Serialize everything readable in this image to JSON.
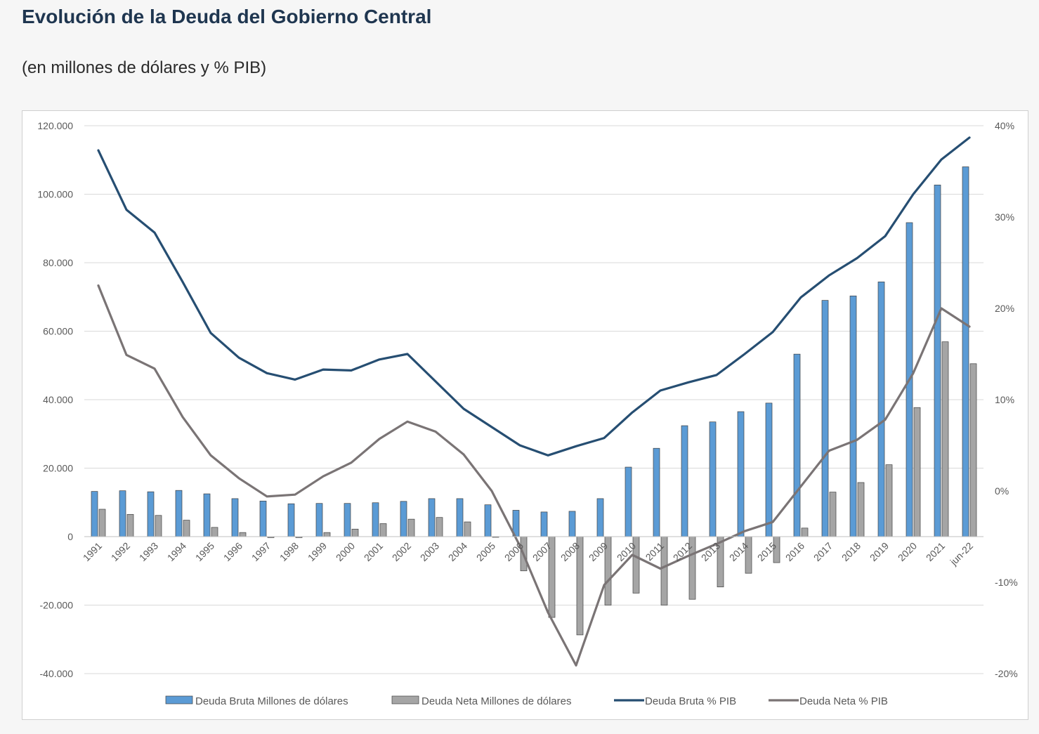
{
  "header": {
    "title": "Evolución de la Deuda del Gobierno Central",
    "subtitle": "(en millones de dólares y % PIB)"
  },
  "colors": {
    "bruta_bar": "#5b9bd5",
    "neta_bar": "#a5a5a5",
    "bruta_line": "#264e72",
    "neta_line": "#7a7475"
  },
  "chart_data": {
    "type": "bar",
    "title": "Evolución de la Deuda del Gobierno Central",
    "categories": [
      "1991",
      "1992",
      "1993",
      "1994",
      "1995",
      "1996",
      "1997",
      "1998",
      "1999",
      "2000",
      "2001",
      "2002",
      "2003",
      "2004",
      "2005",
      "2006",
      "2007",
      "2008",
      "2009",
      "2010",
      "2011",
      "2012",
      "2013",
      "2014",
      "2015",
      "2016",
      "2017",
      "2018",
      "2019",
      "2020",
      "2021",
      "jun-22"
    ],
    "y_left": {
      "min": -40000,
      "max": 120000,
      "ticks": [
        -40000,
        -20000,
        0,
        20000,
        40000,
        60000,
        80000,
        100000,
        120000
      ],
      "tick_labels": [
        "-40.000",
        "-20.000",
        "0",
        "20.000",
        "40.000",
        "60.000",
        "80.000",
        "100.000",
        "120.000"
      ]
    },
    "y_right": {
      "min": -20,
      "max": 40,
      "ticks": [
        -20,
        -10,
        0,
        10,
        20,
        30,
        40
      ],
      "tick_labels": [
        "-20%",
        "-10%",
        "0%",
        "10%",
        "20%",
        "30%",
        "40%"
      ]
    },
    "series": [
      {
        "name": "Deuda Bruta Millones de dólares",
        "type": "bar",
        "axis": "left",
        "values": [
          13200,
          13400,
          13100,
          13500,
          12500,
          11100,
          10400,
          9600,
          9700,
          9700,
          9900,
          10300,
          11100,
          11100,
          9300,
          7700,
          7200,
          7400,
          11100,
          20300,
          25800,
          32400,
          33500,
          36500,
          39000,
          53300,
          69000,
          70300,
          74400,
          91700,
          102700,
          108000
        ]
      },
      {
        "name": "Deuda Neta Millones de dólares",
        "type": "bar",
        "axis": "left",
        "values": [
          8000,
          6500,
          6200,
          4800,
          2700,
          1200,
          -300,
          -300,
          1200,
          2200,
          3800,
          5100,
          5600,
          4300,
          -200,
          -10000,
          -23600,
          -28700,
          -20000,
          -16500,
          -20000,
          -18300,
          -14700,
          -10700,
          -7600,
          2500,
          13000,
          15800,
          21000,
          37700,
          56900,
          50500
        ]
      },
      {
        "name": "Deuda Bruta % PIB",
        "type": "line",
        "axis": "right",
        "values": [
          37.3,
          30.8,
          28.3,
          22.9,
          17.3,
          14.6,
          12.9,
          12.2,
          13.3,
          13.2,
          14.4,
          15.0,
          12.0,
          9.0,
          7.0,
          5.0,
          3.9,
          4.9,
          5.8,
          8.6,
          11.0,
          11.9,
          12.7,
          15.0,
          17.4,
          21.2,
          23.6,
          25.5,
          27.9,
          32.5,
          36.3,
          38.7
        ]
      },
      {
        "name": "Deuda Neta % PIB",
        "type": "line",
        "axis": "right",
        "values": [
          22.5,
          14.9,
          13.4,
          8.1,
          3.9,
          1.4,
          -0.6,
          -0.4,
          1.6,
          3.1,
          5.7,
          7.6,
          6.5,
          4.0,
          0.0,
          -6.0,
          -13.3,
          -19.1,
          -10.3,
          -7.0,
          -8.5,
          -7.1,
          -5.8,
          -4.4,
          -3.4,
          0.5,
          4.4,
          5.6,
          7.8,
          12.9,
          20.0,
          18.0
        ]
      }
    ],
    "legend": [
      "Deuda Bruta Millones de dólares",
      "Deuda Neta Millones de dólares",
      "Deuda Bruta % PIB",
      "Deuda Neta % PIB"
    ],
    "legend_position": "bottom",
    "grid": true
  }
}
